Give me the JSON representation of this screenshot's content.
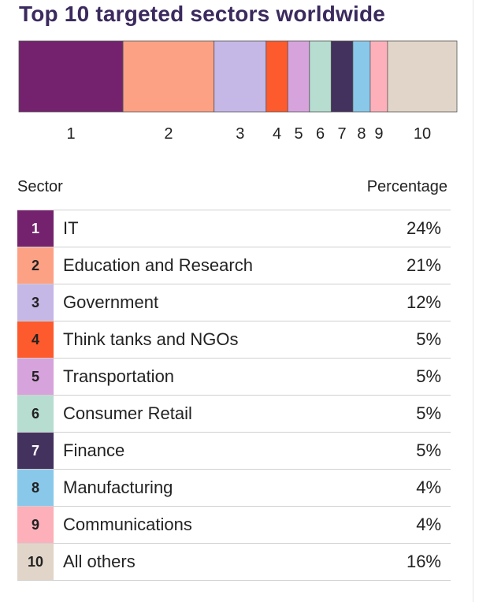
{
  "title": "Top 10 targeted sectors worldwide",
  "table": {
    "header_sector": "Sector",
    "header_percentage": "Percentage"
  },
  "chart_data": {
    "type": "bar",
    "orientation": "stacked-horizontal-100",
    "title": "Top 10 targeted sectors worldwide",
    "xlabel": "",
    "ylabel": "",
    "categories": [
      "1",
      "2",
      "3",
      "4",
      "5",
      "6",
      "7",
      "8",
      "9",
      "10"
    ],
    "values": [
      24,
      21,
      12,
      5,
      5,
      5,
      5,
      4,
      4,
      16
    ],
    "labels": [
      "IT",
      "Education and Research",
      "Government",
      "Think tanks and NGOs",
      "Transportation",
      "Consumer Retail",
      "Finance",
      "Manufacturing",
      "Communications",
      "All others"
    ],
    "percent_labels": [
      "24%",
      "21%",
      "12%",
      "5%",
      "5%",
      "5%",
      "5%",
      "4%",
      "4%",
      "16%"
    ],
    "colors": [
      "#74226e",
      "#fda185",
      "#c5b7e6",
      "#fd5a2d",
      "#d6a3dc",
      "#b6ddd0",
      "#43325e",
      "#8ac8ea",
      "#fdb0ba",
      "#e1d5c9"
    ],
    "number_colors": [
      "#ffffff",
      "#222222",
      "#222222",
      "#222222",
      "#222222",
      "#222222",
      "#ffffff",
      "#222222",
      "#222222",
      "#222222"
    ],
    "grid": false,
    "legend": "table-below"
  }
}
